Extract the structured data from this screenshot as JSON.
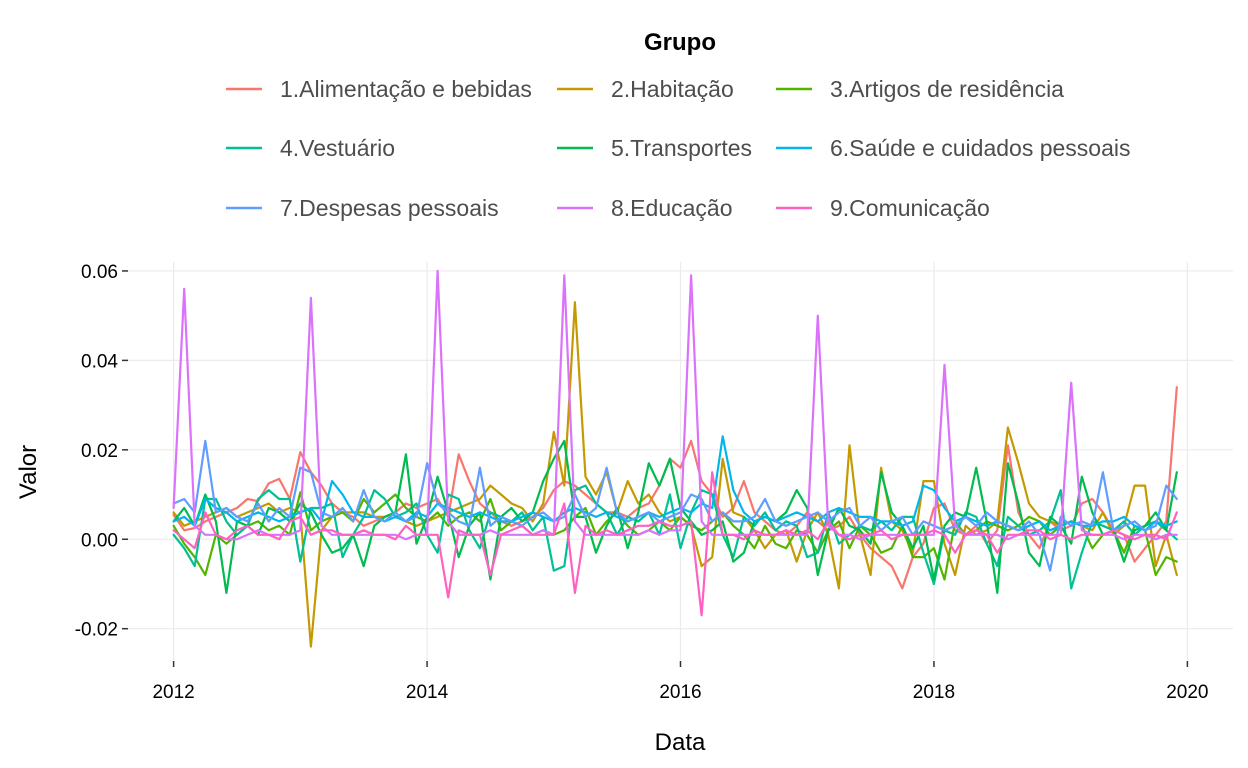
{
  "chart_data": {
    "type": "line",
    "xlabel": "Data",
    "ylabel": "Valor",
    "legend_title": "Grupo",
    "legend_position": "top",
    "grid": true,
    "x_ticks": [
      "2012",
      "2014",
      "2016",
      "2018",
      "2020"
    ],
    "y_ticks": [
      "0.06",
      "0.04",
      "0.02",
      "0.00",
      "-0.02"
    ],
    "ylim": [
      -0.027,
      0.062
    ],
    "x_start": "2012-01",
    "x_end": "2019-12",
    "series": [
      {
        "name": "1.Alimentação e bebidas",
        "color": "#F8766D",
        "values": [
          0.0055,
          0.002,
          0.0025,
          0.004,
          0.005,
          0.006,
          0.007,
          0.009,
          0.0085,
          0.0125,
          0.0135,
          0.009,
          0.0195,
          0.015,
          0.012,
          0.008,
          0.006,
          0.005,
          0.003,
          0.004,
          0.005,
          0.006,
          0.008,
          0.007,
          0.008,
          0.009,
          0.005,
          0.019,
          0.013,
          0.008,
          0.006,
          0.004,
          0.003,
          0.004,
          0.005,
          0.007,
          0.011,
          0.013,
          0.012,
          0.01,
          0.008,
          0.006,
          0.006,
          0.005,
          0.007,
          0.008,
          0.012,
          0.018,
          0.016,
          0.022,
          0.013,
          0.01,
          0.005,
          0.007,
          0.013,
          0.006,
          0.004,
          0.002,
          0.001,
          0.003,
          0.006,
          0.004,
          0.002,
          0.003,
          0.005,
          0.001,
          -0.002,
          -0.004,
          -0.006,
          -0.011,
          -0.004,
          -0.001,
          0.007,
          0.008,
          0.002,
          0.001,
          0.003,
          -0.001,
          0.002,
          0.021,
          0.006,
          0.001,
          -0.002,
          0.004,
          0.002,
          0.003,
          0.008,
          0.009,
          0.006,
          0.002,
          0.001,
          -0.005,
          -0.002,
          0.001,
          0.004,
          0.034
        ]
      },
      {
        "name": "2.Habitação",
        "color": "#C49A00",
        "values": [
          0.006,
          0.003,
          0.004,
          0.005,
          0.006,
          0.007,
          0.005,
          0.006,
          0.007,
          0.008,
          0.006,
          0.007,
          0.006,
          -0.024,
          0.002,
          0.005,
          0.006,
          0.006,
          0.006,
          0.005,
          0.005,
          0.006,
          0.004,
          0.003,
          0.004,
          0.005,
          0.006,
          0.007,
          0.008,
          0.009,
          0.012,
          0.01,
          0.008,
          0.007,
          0.004,
          0.008,
          0.024,
          0.012,
          0.053,
          0.014,
          0.01,
          0.015,
          0.006,
          0.013,
          0.008,
          0.01,
          0.006,
          0.004,
          0.005,
          0.003,
          -0.006,
          -0.004,
          0.018,
          0.006,
          0.005,
          0.002,
          -0.002,
          0.001,
          0.002,
          -0.005,
          0.002,
          0.006,
          0.001,
          -0.011,
          0.021,
          0.001,
          -0.008,
          0.016,
          0.004,
          0.002,
          -0.003,
          0.013,
          0.013,
          -0.001,
          -0.008,
          0.003,
          0.001,
          0.002,
          0.004,
          0.025,
          0.017,
          0.008,
          0.005,
          0.004,
          0.003,
          0.004,
          0.003,
          0.002,
          0.006,
          0.001,
          0.003,
          0.012,
          0.012,
          -0.006,
          0.001,
          -0.008
        ]
      },
      {
        "name": "3.Artigos de residência",
        "color": "#53B400",
        "values": [
          0.003,
          -0.001,
          -0.004,
          -0.008,
          0.001,
          -0.001,
          0.001,
          0.003,
          0.004,
          0.002,
          0.003,
          0.001,
          0.0105,
          0.002,
          0.004,
          0.005,
          0.006,
          0.004,
          0.009,
          0.006,
          0.008,
          0.01,
          0.007,
          0.005,
          0.004,
          0.006,
          0.003,
          0.005,
          0.006,
          0.004,
          0.009,
          0.002,
          0.004,
          0.003,
          0.001,
          0.002,
          0.001,
          0.002,
          0.005,
          0.007,
          0.001,
          0.004,
          0.006,
          0.003,
          0.001,
          0.002,
          0.004,
          0.002,
          0.005,
          0.003,
          0.002,
          0.004,
          0.006,
          0.003,
          0.001,
          -0.002,
          0.003,
          -0.001,
          -0.002,
          0.002,
          0.001,
          -0.003,
          0.002,
          0.004,
          -0.002,
          0.003,
          0.001,
          -0.003,
          -0.002,
          0.003,
          -0.004,
          -0.004,
          -0.002,
          -0.009,
          0.004,
          0.001,
          0.002,
          0.004,
          0.003,
          0.002,
          0.003,
          0.005,
          0.004,
          0.001,
          0.003,
          0.004,
          0.003,
          -0.002,
          0.001,
          0.002,
          -0.003,
          0.003,
          0.002,
          -0.008,
          -0.004,
          -0.005
        ]
      },
      {
        "name": "4.Vestuário",
        "color": "#00C094",
        "values": [
          0.001,
          -0.002,
          -0.006,
          0.009,
          0.009,
          0.004,
          0.001,
          0.003,
          0.009,
          0.011,
          0.009,
          0.009,
          -0.005,
          0.007,
          0.007,
          0.008,
          -0.004,
          0.001,
          0.005,
          0.011,
          0.009,
          0.005,
          0.006,
          0.008,
          0.001,
          -0.003,
          0.01,
          0.009,
          0.002,
          -0.002,
          0.006,
          0.005,
          0.004,
          0.006,
          0.002,
          0.005,
          -0.007,
          -0.006,
          0.011,
          0.012,
          0.008,
          0.006,
          0.001,
          0.005,
          0.004,
          0.006,
          0.001,
          0.01,
          -0.002,
          0.006,
          0.011,
          0.01,
          0.001,
          -0.004,
          0.005,
          0.003,
          0.006,
          0.002,
          0.004,
          0.003,
          -0.004,
          -0.003,
          0.006,
          -0.001,
          0.001,
          0.003,
          0.002,
          0.004,
          0.002,
          0.005,
          0.005,
          -0.003,
          -0.01,
          0.002,
          0.001,
          0.006,
          0.005,
          -0.001,
          -0.006,
          0.005,
          0.003,
          0.001,
          0.002,
          0.004,
          0.011,
          -0.011,
          -0.003,
          0.004,
          0.003,
          0.002,
          0.004,
          0.001,
          0.003,
          0.004,
          0.002,
          0.0
        ]
      },
      {
        "name": "5.Transportes",
        "color": "#00BB4E",
        "swatch_note": "",
        "values": [
          0.004,
          0.007,
          0.003,
          0.01,
          0.004,
          -0.012,
          0.004,
          0.003,
          0.001,
          0.007,
          0.006,
          0.004,
          0.008,
          0.006,
          0.001,
          -0.003,
          -0.002,
          0.001,
          -0.006,
          0.003,
          0.005,
          0.006,
          0.019,
          -0.001,
          0.005,
          0.014,
          0.006,
          -0.004,
          0.003,
          0.006,
          -0.009,
          0.005,
          0.007,
          0.004,
          0.006,
          0.013,
          0.018,
          0.022,
          0.005,
          0.005,
          -0.003,
          0.003,
          0.007,
          -0.002,
          0.006,
          0.017,
          0.012,
          0.018,
          0.007,
          0.004,
          0.001,
          0.002,
          0.004,
          -0.005,
          -0.003,
          0.004,
          0.005,
          0.004,
          0.006,
          0.011,
          0.007,
          -0.008,
          0.002,
          0.007,
          0.003,
          0.002,
          -0.001,
          0.015,
          0.006,
          0.003,
          -0.002,
          0.003,
          -0.009,
          0.003,
          0.006,
          0.005,
          0.016,
          0.004,
          -0.012,
          0.017,
          0.008,
          -0.003,
          -0.006,
          0.005,
          0.003,
          -0.001,
          0.014,
          0.006,
          0.001,
          0.002,
          -0.005,
          0.002,
          0.003,
          0.006,
          0.002,
          0.015
        ]
      },
      {
        "name": "6.Saúde e cuidados pessoais",
        "color": "#00B6EB",
        "values": [
          0.004,
          0.005,
          0.003,
          0.009,
          0.007,
          0.006,
          0.004,
          0.005,
          0.006,
          0.005,
          0.004,
          0.005,
          0.006,
          0.007,
          0.004,
          0.013,
          0.01,
          0.006,
          0.005,
          0.005,
          0.004,
          0.005,
          0.004,
          0.006,
          0.005,
          0.008,
          0.007,
          0.006,
          0.005,
          0.006,
          0.005,
          0.004,
          0.004,
          0.005,
          0.006,
          0.005,
          0.004,
          0.006,
          0.007,
          0.006,
          0.005,
          0.006,
          0.005,
          0.004,
          0.005,
          0.006,
          0.005,
          0.006,
          0.007,
          0.006,
          0.008,
          0.007,
          0.023,
          0.011,
          0.006,
          0.004,
          0.005,
          0.004,
          0.005,
          0.006,
          0.005,
          0.004,
          0.006,
          0.007,
          0.006,
          0.005,
          0.005,
          0.004,
          0.004,
          0.003,
          0.004,
          0.012,
          0.011,
          0.007,
          0.004,
          0.005,
          0.004,
          0.003,
          0.004,
          0.003,
          0.002,
          0.003,
          0.004,
          0.002,
          0.003,
          0.004,
          0.003,
          0.003,
          0.004,
          0.004,
          0.005,
          0.003,
          0.002,
          0.004,
          0.003,
          0.004
        ]
      },
      {
        "name": "7.Despesas pessoais",
        "color": "#619CFF",
        "values": [
          0.008,
          0.009,
          0.006,
          0.022,
          0.006,
          0.007,
          0.005,
          0.004,
          0.008,
          0.004,
          0.007,
          0.005,
          0.016,
          0.015,
          0.006,
          0.005,
          0.007,
          0.004,
          0.011,
          0.005,
          0.004,
          0.006,
          0.004,
          0.005,
          0.017,
          0.008,
          0.006,
          0.004,
          0.003,
          0.016,
          0.003,
          0.005,
          0.004,
          0.003,
          0.005,
          0.006,
          0.004,
          0.005,
          0.01,
          0.005,
          0.007,
          0.016,
          0.006,
          0.004,
          0.005,
          0.006,
          0.004,
          0.005,
          0.006,
          0.01,
          0.009,
          0.004,
          0.006,
          0.004,
          0.004,
          0.005,
          0.009,
          0.004,
          0.003,
          0.004,
          0.005,
          0.006,
          0.004,
          0.006,
          0.007,
          0.003,
          0.005,
          0.002,
          0.004,
          0.005,
          0.001,
          0.004,
          0.003,
          0.002,
          0.003,
          0.005,
          0.003,
          0.006,
          0.004,
          0.003,
          0.002,
          0.004,
          0.001,
          -0.007,
          0.005,
          0.003,
          0.004,
          0.003,
          0.015,
          0.002,
          0.003,
          0.004,
          0.002,
          0.003,
          0.012,
          0.009
        ]
      },
      {
        "name": "8.Educação",
        "color": "#DB72FB",
        "values": [
          0.007,
          0.056,
          0.003,
          0.001,
          0.001,
          0.0,
          0.0,
          0.001,
          0.002,
          0.001,
          0.001,
          0.001,
          0.002,
          0.054,
          0.003,
          0.001,
          0.001,
          0.001,
          0.001,
          0.001,
          0.001,
          0.001,
          0.0,
          0.001,
          0.001,
          0.06,
          0.004,
          0.001,
          0.001,
          0.001,
          0.002,
          0.001,
          0.001,
          0.001,
          0.001,
          0.002,
          0.001,
          0.059,
          0.004,
          0.001,
          0.001,
          0.001,
          0.001,
          0.001,
          0.001,
          0.002,
          0.001,
          0.002,
          0.002,
          0.059,
          0.004,
          0.001,
          0.001,
          0.001,
          0.001,
          0.001,
          0.001,
          0.001,
          0.001,
          0.001,
          0.001,
          0.05,
          0.003,
          0.001,
          0.001,
          0.0,
          0.001,
          0.001,
          0.001,
          0.001,
          0.001,
          0.001,
          0.001,
          0.039,
          0.003,
          0.001,
          0.001,
          0.001,
          0.001,
          0.0,
          0.001,
          0.001,
          0.001,
          0.001,
          0.001,
          0.035,
          0.002,
          0.001,
          0.001,
          0.001,
          0.0,
          0.001,
          0.001,
          0.0,
          0.001,
          0.001
        ]
      },
      {
        "name": "9.Comunicação",
        "color": "#FF61C3",
        "values": [
          0.002,
          0.0,
          -0.002,
          0.006,
          0.001,
          0.0,
          0.002,
          0.003,
          0.001,
          0.001,
          0.0,
          0.004,
          0.005,
          0.001,
          0.002,
          0.002,
          0.001,
          0.001,
          0.002,
          0.001,
          0.001,
          0.0,
          0.003,
          0.001,
          0.001,
          0.001,
          -0.013,
          0.002,
          0.001,
          0.001,
          -0.008,
          0.001,
          0.002,
          0.003,
          0.001,
          0.001,
          0.001,
          0.008,
          -0.012,
          0.003,
          0.001,
          0.002,
          0.001,
          0.002,
          0.003,
          0.003,
          0.004,
          0.003,
          0.003,
          0.004,
          -0.017,
          0.015,
          0.001,
          0.001,
          0.0,
          0.002,
          0.001,
          0.001,
          0.002,
          0.001,
          0.002,
          0.0,
          0.004,
          0.001,
          0.0,
          0.001,
          0.001,
          0.002,
          0.0,
          0.001,
          0.001,
          0.001,
          0.002,
          0.001,
          -0.003,
          0.001,
          0.002,
          0.001,
          -0.003,
          0.001,
          0.001,
          0.002,
          0.002,
          0.0,
          0.001,
          0.0,
          0.001,
          0.001,
          0.001,
          0.002,
          0.001,
          0.0,
          0.001,
          0.001,
          0.0,
          0.006
        ]
      }
    ]
  }
}
